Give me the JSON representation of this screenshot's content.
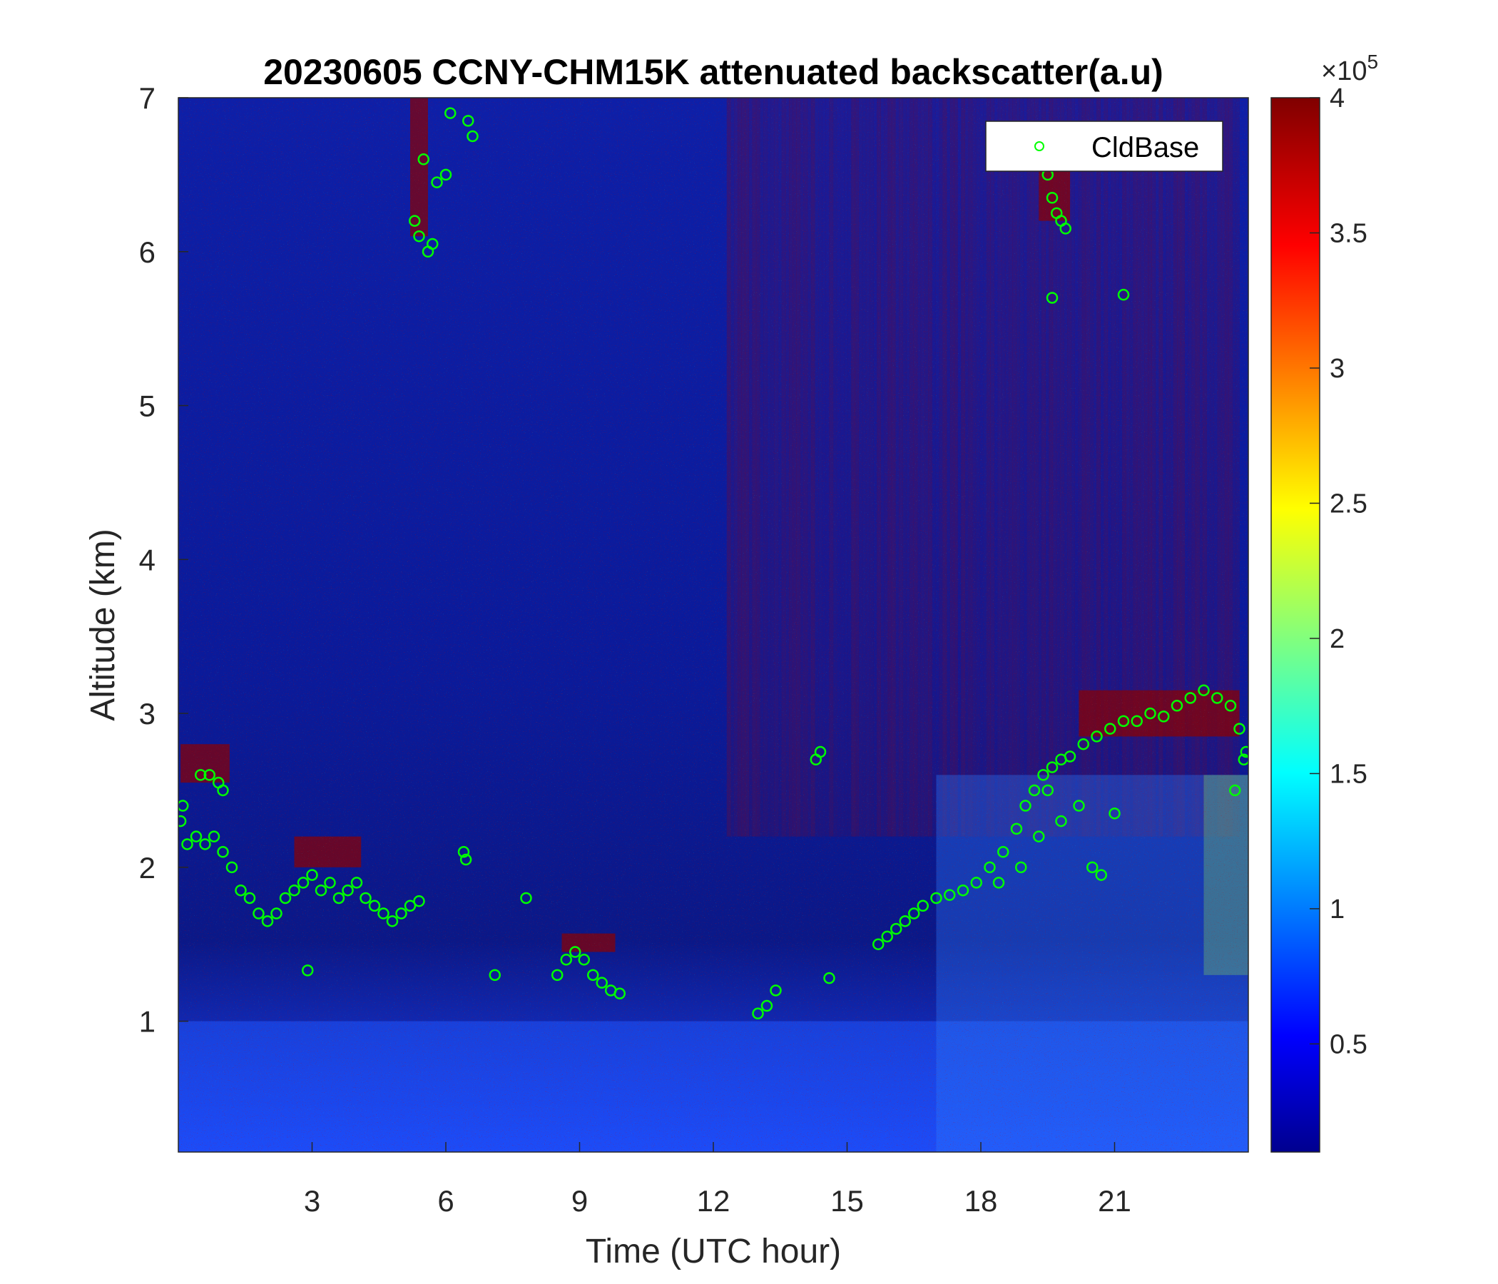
{
  "chart_data": {
    "type": "heatmap",
    "title": "20230605 CCNY-CHM15K attenuated backscatter(a.u)",
    "xlabel": "Time (UTC hour)",
    "ylabel": "Altitude (km)",
    "xlim": [
      0,
      24
    ],
    "ylim": [
      0.15,
      7
    ],
    "xticks": [
      3,
      6,
      9,
      12,
      15,
      18,
      21
    ],
    "xtick_labels": [
      "3",
      "6",
      "9",
      "12",
      "15",
      "18",
      "21"
    ],
    "yticks": [
      1,
      2,
      3,
      4,
      5,
      6,
      7
    ],
    "ytick_labels": [
      "1",
      "2",
      "3",
      "4",
      "5",
      "6",
      "7"
    ],
    "colormap": "jet",
    "colorbar": {
      "clim": [
        0.1,
        4
      ],
      "ticks": [
        0.5,
        1,
        1.5,
        2,
        2.5,
        3,
        3.5,
        4
      ],
      "tick_labels": [
        "0.5",
        "1",
        "1.5",
        "2",
        "2.5",
        "3",
        "3.5",
        "4"
      ],
      "multiplier_base": "×10",
      "multiplier_exp": "5"
    },
    "legend": {
      "entries": [
        "CldBase"
      ],
      "placement": "top-right"
    },
    "series": [
      {
        "name": "CldBase",
        "marker": "circle",
        "color": "#00ff00",
        "x": [
          0.05,
          0.2,
          0.4,
          0.6,
          0.8,
          1.0,
          1.2,
          1.4,
          1.6,
          1.8,
          2.0,
          2.2,
          2.4,
          2.6,
          2.8,
          3.0,
          3.2,
          3.4,
          3.6,
          3.8,
          4.0,
          4.2,
          4.4,
          4.6,
          4.8,
          5.0,
          5.2,
          5.4,
          0.1,
          0.5,
          0.7,
          0.9,
          1.0,
          5.3,
          5.4,
          5.5,
          5.6,
          5.7,
          5.8,
          6.0,
          6.1,
          6.5,
          6.6,
          6.4,
          6.45,
          7.1,
          7.8,
          8.5,
          8.7,
          8.9,
          9.1,
          9.3,
          9.5,
          9.7,
          9.9,
          2.9,
          13.0,
          13.2,
          13.4,
          14.3,
          14.4,
          14.6,
          15.7,
          15.9,
          16.1,
          16.3,
          16.5,
          16.7,
          17.0,
          17.3,
          17.6,
          17.9,
          18.2,
          18.5,
          18.8,
          19.0,
          19.2,
          19.4,
          19.6,
          19.8,
          20.0,
          20.3,
          20.6,
          20.9,
          21.2,
          21.5,
          21.8,
          22.1,
          22.4,
          22.7,
          23.0,
          23.3,
          23.6,
          23.8,
          23.95,
          18.4,
          18.9,
          19.3,
          19.5,
          19.8,
          20.2,
          20.5,
          20.7,
          21.0,
          23.7,
          23.9,
          19.5,
          19.6,
          19.7,
          19.8,
          19.9,
          19.6,
          21.2
        ],
        "y": [
          2.3,
          2.15,
          2.2,
          2.15,
          2.2,
          2.1,
          2.0,
          1.85,
          1.8,
          1.7,
          1.65,
          1.7,
          1.8,
          1.85,
          1.9,
          1.95,
          1.85,
          1.9,
          1.8,
          1.85,
          1.9,
          1.8,
          1.75,
          1.7,
          1.65,
          1.7,
          1.75,
          1.78,
          2.4,
          2.6,
          2.6,
          2.55,
          2.5,
          6.2,
          6.1,
          6.6,
          6.0,
          6.05,
          6.45,
          6.5,
          6.9,
          6.85,
          6.75,
          2.1,
          2.05,
          1.3,
          1.8,
          1.3,
          1.4,
          1.45,
          1.4,
          1.3,
          1.25,
          1.2,
          1.18,
          1.33,
          1.05,
          1.1,
          1.2,
          2.7,
          2.75,
          1.28,
          1.5,
          1.55,
          1.6,
          1.65,
          1.7,
          1.75,
          1.8,
          1.82,
          1.85,
          1.9,
          2.0,
          2.1,
          2.25,
          2.4,
          2.5,
          2.6,
          2.65,
          2.7,
          2.72,
          2.8,
          2.85,
          2.9,
          2.95,
          2.95,
          3.0,
          2.98,
          3.05,
          3.1,
          3.15,
          3.1,
          3.05,
          2.9,
          2.75,
          1.9,
          2.0,
          2.2,
          2.5,
          2.3,
          2.4,
          2.0,
          1.95,
          2.35,
          2.5,
          2.7,
          6.5,
          6.35,
          6.25,
          6.2,
          6.15,
          5.7,
          5.72
        ]
      }
    ]
  }
}
